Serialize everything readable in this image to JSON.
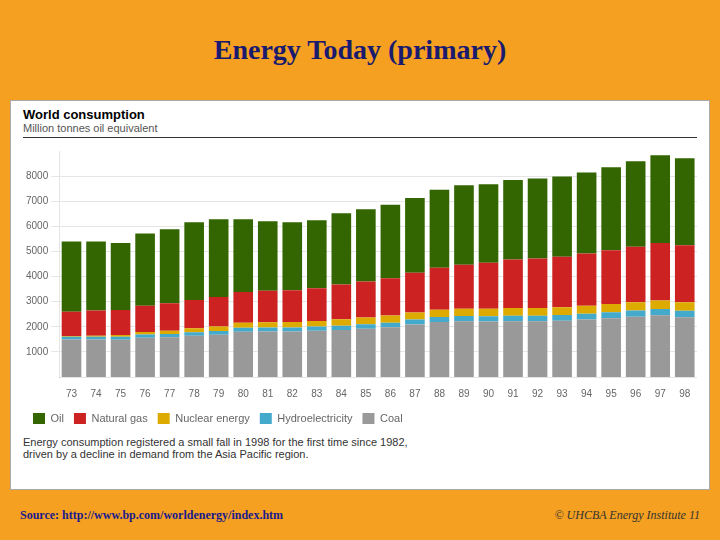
{
  "chart_data": {
    "type": "bar",
    "title": "Energy Today (primary)",
    "subtitle": "World consumption",
    "y_label": "Million tonnes oil equivalent",
    "annotations": [
      "Energy consumption registered a small fall in 1998 for the first time since 1982,\ndriven by a decline in demand from the Asia Pacific region.",
      "Source: http://www.bp.com/worldenergy/index.htm",
      "© UHCBA Energy Institute  11"
    ],
    "categories": [
      "73",
      "74",
      "75",
      "76",
      "77",
      "78",
      "79",
      "80",
      "81",
      "82",
      "83",
      "84",
      "85",
      "86",
      "87",
      "88",
      "89",
      "90",
      "91",
      "92",
      "93",
      "94",
      "95",
      "96",
      "97",
      "98"
    ],
    "series": [
      {
        "name": "Coal",
        "color": "#999999",
        "values": [
          1490,
          1490,
          1480,
          1560,
          1580,
          1640,
          1680,
          1800,
          1810,
          1810,
          1840,
          1870,
          1920,
          1980,
          2090,
          2190,
          2220,
          2210,
          2220,
          2220,
          2240,
          2290,
          2340,
          2400,
          2460,
          2380
        ]
      },
      {
        "name": "Hydroelectricity",
        "color": "#44AACC",
        "values": [
          110,
          115,
          120,
          130,
          135,
          140,
          150,
          160,
          165,
          165,
          170,
          175,
          180,
          185,
          195,
          200,
          205,
          210,
          215,
          220,
          225,
          230,
          240,
          245,
          250,
          255
        ]
      },
      {
        "name": "Nuclear energy",
        "color": "#DDAA00",
        "values": [
          30,
          40,
          70,
          100,
          130,
          160,
          185,
          200,
          210,
          220,
          220,
          250,
          270,
          280,
          285,
          285,
          290,
          300,
          310,
          310,
          315,
          315,
          325,
          330,
          340,
          340
        ]
      },
      {
        "name": "Natural gas",
        "color": "#CC2222",
        "values": [
          970,
          1000,
          1000,
          1050,
          1090,
          1130,
          1170,
          1220,
          1250,
          1260,
          1300,
          1390,
          1430,
          1490,
          1580,
          1680,
          1760,
          1830,
          1930,
          1970,
          2010,
          2080,
          2140,
          2210,
          2290,
          2270
        ]
      },
      {
        "name": "Oil",
        "color": "#336600",
        "values": [
          2800,
          2750,
          2670,
          2870,
          2950,
          3090,
          3100,
          2900,
          2770,
          2710,
          2710,
          2840,
          2880,
          2920,
          2980,
          3100,
          3160,
          3130,
          3170,
          3180,
          3190,
          3230,
          3310,
          3410,
          3490,
          3470
        ]
      }
    ],
    "stacked": true,
    "ylim": [
      0,
      9000
    ],
    "yticks": [
      1000,
      2000,
      3000,
      4000,
      5000,
      6000,
      7000,
      8000
    ],
    "grid": true,
    "legend": "bottom"
  }
}
